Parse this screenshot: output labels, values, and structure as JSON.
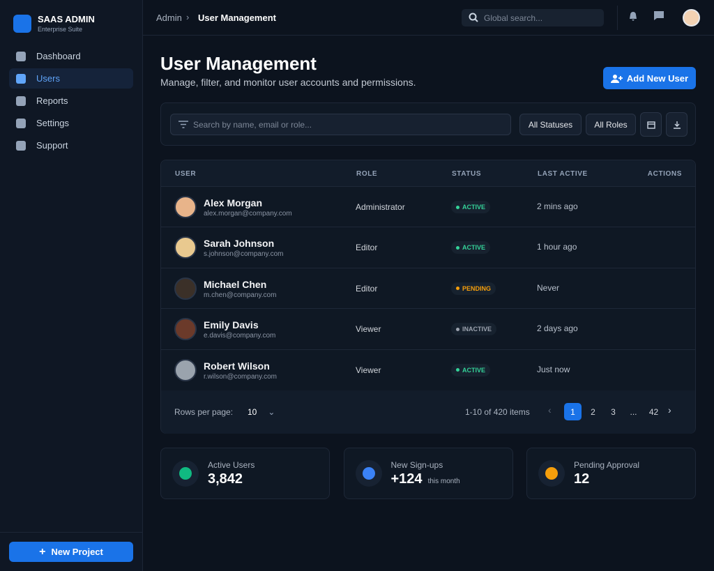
{
  "sidebar": {
    "brand": "SAAS ADMIN",
    "tagline": "Enterprise Suite",
    "nav": [
      "Dashboard",
      "Users",
      "Reports",
      "Settings",
      "Support"
    ],
    "new_project": "New Project"
  },
  "topbar": {
    "breadcrumb": [
      "Admin",
      "User Management"
    ],
    "search_placeholder": "Global search..."
  },
  "header": {
    "title": "User Management",
    "subtitle": "Manage, filter, and monitor user accounts and permissions.",
    "add_button": "Add New User"
  },
  "filters": {
    "search_placeholder": "Search by name, email or role...",
    "status": "All Statuses",
    "role": "All Roles"
  },
  "table": {
    "columns": [
      "USER",
      "ROLE",
      "STATUS",
      "LAST ACTIVE",
      "ACTIONS"
    ],
    "rows": [
      {
        "name": "Alex Morgan",
        "email": "alex.morgan@company.com",
        "role": "Administrator",
        "status": "ACTIVE",
        "status_color": "#34d399",
        "last_active": "2 mins ago"
      },
      {
        "name": "Sarah Johnson",
        "email": "s.johnson@company.com",
        "role": "Editor",
        "status": "ACTIVE",
        "status_color": "#34d399",
        "last_active": "1 hour ago"
      },
      {
        "name": "Michael Chen",
        "email": "m.chen@company.com",
        "role": "Editor",
        "status": "PENDING",
        "status_color": "#f59e0b",
        "last_active": "Never"
      },
      {
        "name": "Emily Davis",
        "email": "e.davis@company.com",
        "role": "Viewer",
        "status": "INACTIVE",
        "status_color": "#9ca3af",
        "last_active": "2 days ago"
      },
      {
        "name": "Robert Wilson",
        "email": "r.wilson@company.com",
        "role": "Viewer",
        "status": "ACTIVE",
        "status_color": "#34d399",
        "last_active": "Just now"
      }
    ]
  },
  "pagination": {
    "rows_label": "Rows per page:",
    "rows_value": "10",
    "range": "1-10 of 420 items",
    "pages": [
      "1",
      "2",
      "3",
      "...",
      "42"
    ]
  },
  "stats": [
    {
      "label": "Active Users",
      "value": "3,842"
    },
    {
      "label": "New Sign-ups",
      "value": "+124",
      "note": "this month"
    },
    {
      "label": "Pending Approval",
      "value": "12"
    }
  ]
}
